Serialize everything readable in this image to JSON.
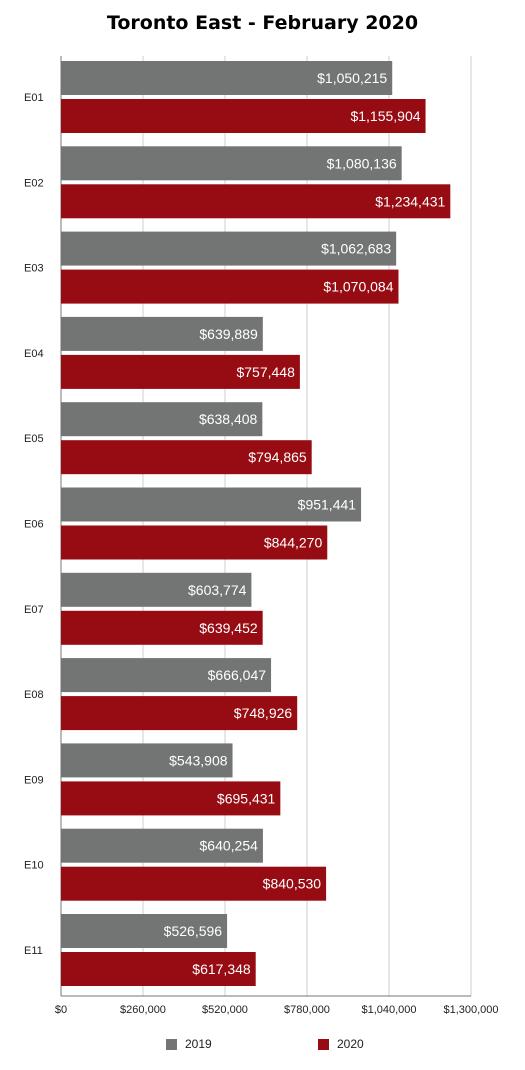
{
  "chart_data": {
    "type": "bar",
    "orientation": "horizontal",
    "title": "Toronto East - February 2020",
    "categories": [
      "E01",
      "E02",
      "E03",
      "E04",
      "E05",
      "E06",
      "E07",
      "E08",
      "E09",
      "E10",
      "E11"
    ],
    "series": [
      {
        "name": "2019",
        "color": "#737574",
        "values": [
          1050215,
          1080136,
          1062683,
          639889,
          638408,
          951441,
          603774,
          666047,
          543908,
          640254,
          526596
        ],
        "labels": [
          "$1,050,215",
          "$1,080,136",
          "$1,062,683",
          "$639,889",
          "$638,408",
          "$951,441",
          "$603,774",
          "$666,047",
          "$543,908",
          "$640,254",
          "$526,596"
        ]
      },
      {
        "name": "2020",
        "color": "#970b13",
        "values": [
          1155904,
          1234431,
          1070084,
          757448,
          794865,
          844270,
          639452,
          748926,
          695431,
          840530,
          617348
        ],
        "labels": [
          "$1,155,904",
          "$1,234,431",
          "$1,070,084",
          "$757,448",
          "$794,865",
          "$844,270",
          "$639,452",
          "$748,926",
          "$695,431",
          "$840,530",
          "$617,348"
        ]
      }
    ],
    "xlim": [
      0,
      1300000
    ],
    "xticks": [
      0,
      260000,
      520000,
      780000,
      1040000,
      1300000
    ],
    "xtick_labels": [
      "$0",
      "$260,000",
      "$520,000",
      "$780,000",
      "$1,040,000",
      "$1,300,000"
    ],
    "grid": "vertical",
    "legend_position": "bottom"
  }
}
